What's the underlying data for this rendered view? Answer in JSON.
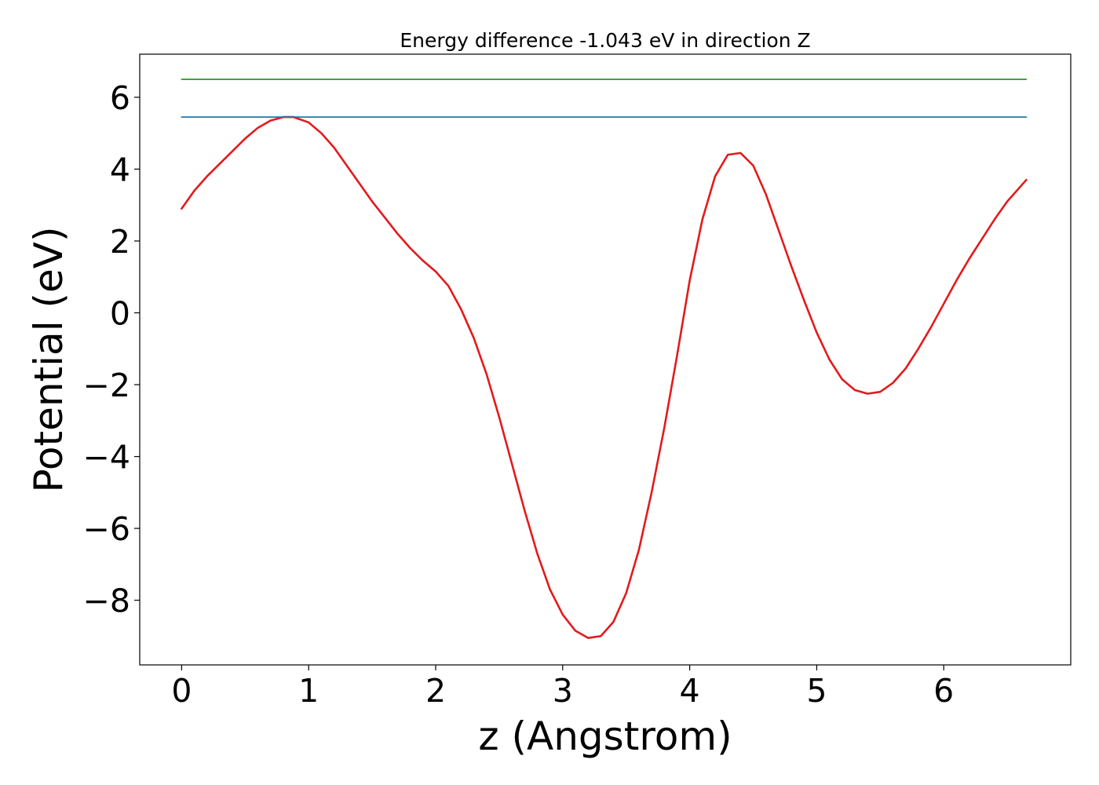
{
  "chart_data": {
    "type": "line",
    "title": "Energy difference -1.043 eV in direction Z",
    "xlabel": "z (Angstrom)",
    "ylabel": "Potential (eV)",
    "xlim": [
      -0.33,
      7.0
    ],
    "ylim": [
      -9.8,
      7.2
    ],
    "grid": false,
    "x_ticks": [
      0,
      1,
      2,
      3,
      4,
      5,
      6
    ],
    "x_tick_labels": [
      "0",
      "1",
      "2",
      "3",
      "4",
      "5",
      "6"
    ],
    "y_ticks": [
      6,
      4,
      2,
      0,
      -2,
      -4,
      -6,
      -8
    ],
    "y_tick_labels": [
      "6",
      "4",
      "2",
      "0",
      "−2",
      "−4",
      "−6",
      "−8"
    ],
    "colors": {
      "potential": "#e31a1c",
      "upper_level": "#33a02c",
      "lower_level": "#1f78b4"
    },
    "series": [
      {
        "key": "potential",
        "x": [
          0.0,
          0.1,
          0.2,
          0.3,
          0.4,
          0.5,
          0.6,
          0.7,
          0.8,
          0.88,
          1.0,
          1.1,
          1.2,
          1.3,
          1.4,
          1.5,
          1.6,
          1.7,
          1.8,
          1.9,
          2.0,
          2.1,
          2.2,
          2.3,
          2.4,
          2.5,
          2.6,
          2.7,
          2.8,
          2.9,
          3.0,
          3.1,
          3.2,
          3.3,
          3.4,
          3.5,
          3.6,
          3.7,
          3.8,
          3.9,
          4.0,
          4.1,
          4.2,
          4.3,
          4.4,
          4.5,
          4.6,
          4.7,
          4.8,
          4.9,
          5.0,
          5.1,
          5.2,
          5.3,
          5.4,
          5.5,
          5.6,
          5.7,
          5.8,
          5.9,
          6.0,
          6.1,
          6.2,
          6.3,
          6.4,
          6.5,
          6.65
        ],
        "y": [
          2.9,
          3.4,
          3.8,
          4.15,
          4.5,
          4.85,
          5.15,
          5.35,
          5.45,
          5.45,
          5.3,
          5.0,
          4.6,
          4.1,
          3.6,
          3.1,
          2.65,
          2.2,
          1.8,
          1.45,
          1.15,
          0.75,
          0.1,
          -0.7,
          -1.7,
          -2.9,
          -4.2,
          -5.5,
          -6.7,
          -7.7,
          -8.4,
          -8.85,
          -9.05,
          -9.0,
          -8.6,
          -7.8,
          -6.6,
          -5.0,
          -3.2,
          -1.2,
          0.9,
          2.6,
          3.8,
          4.4,
          4.45,
          4.1,
          3.3,
          2.3,
          1.3,
          0.35,
          -0.55,
          -1.3,
          -1.85,
          -2.15,
          -2.25,
          -2.2,
          -1.95,
          -1.55,
          -1.0,
          -0.4,
          0.25,
          0.9,
          1.5,
          2.05,
          2.6,
          3.1,
          3.7
        ]
      },
      {
        "key": "upper_level",
        "x": [
          0.0,
          6.65
        ],
        "y": [
          6.5,
          6.5
        ]
      },
      {
        "key": "lower_level",
        "x": [
          0.0,
          6.65
        ],
        "y": [
          5.45,
          5.45
        ]
      }
    ]
  }
}
